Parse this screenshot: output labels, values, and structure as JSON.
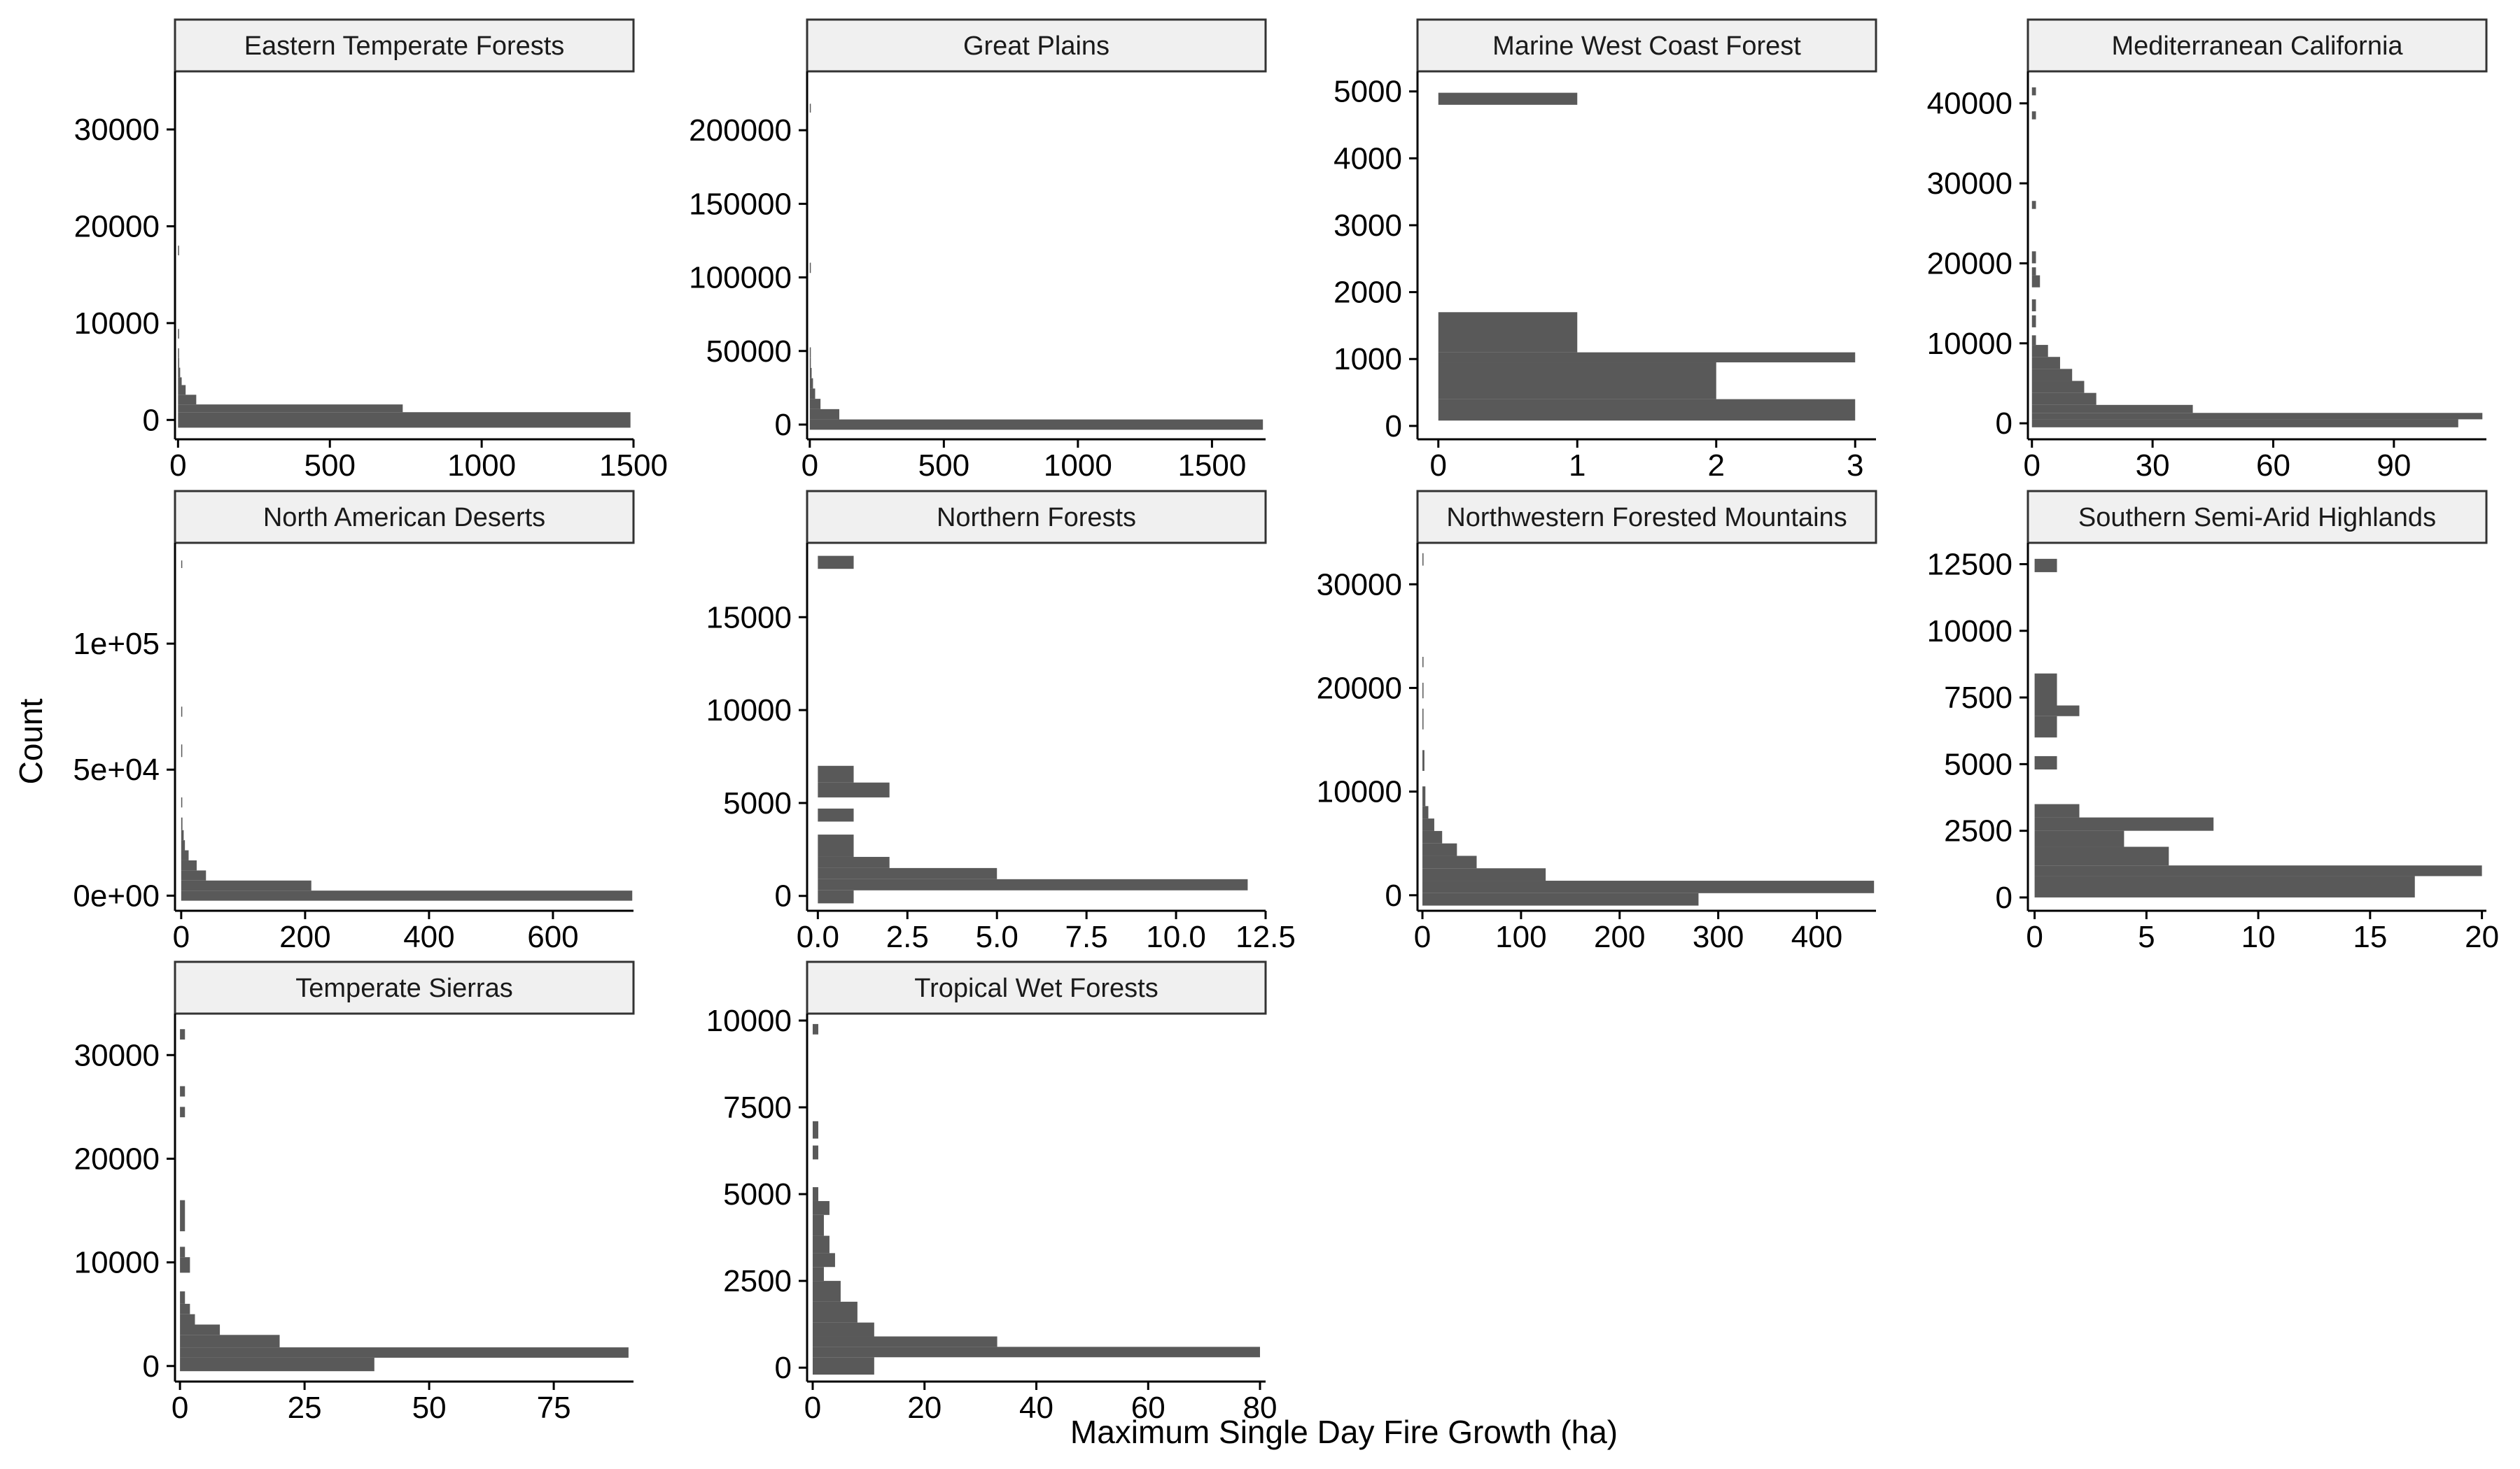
{
  "figure": {
    "xlabel": "Maximum Single Day Fire Growth (ha)",
    "ylabel": "Count"
  },
  "colors": {
    "bar": "#595959",
    "strip_fill": "#f0f0f0",
    "strip_border": "#333333",
    "axis": "#000000"
  },
  "chart_data": [
    {
      "type": "bar",
      "orientation": "horizontal-histogram",
      "title": "Eastern Temperate Forests",
      "xlim": [
        -10,
        1500
      ],
      "ylim": [
        -2000,
        36000
      ],
      "xticks": [
        0,
        500,
        1000,
        1500
      ],
      "xtick_labels": [
        "0",
        "500",
        "1000",
        "1500"
      ],
      "yticks": [
        0,
        10000,
        20000,
        30000
      ],
      "ytick_labels": [
        "0",
        "10000",
        "20000",
        "30000"
      ],
      "bars": [
        [
          -800,
          800,
          1490
        ],
        [
          800,
          1600,
          740
        ],
        [
          1600,
          2600,
          60
        ],
        [
          2600,
          3600,
          25
        ],
        [
          3600,
          4400,
          12
        ],
        [
          4400,
          5400,
          7
        ],
        [
          5400,
          6400,
          4
        ],
        [
          6400,
          7400,
          2
        ],
        [
          8400,
          9400,
          1
        ],
        [
          17000,
          18000,
          1
        ]
      ]
    },
    {
      "type": "bar",
      "orientation": "horizontal-histogram",
      "title": "Great Plains",
      "xlim": [
        -10,
        1700
      ],
      "ylim": [
        -10000,
        240000
      ],
      "xticks": [
        0,
        500,
        1000,
        1500
      ],
      "xtick_labels": [
        "0",
        "500",
        "1000",
        "1500"
      ],
      "yticks": [
        0,
        50000,
        100000,
        150000,
        200000
      ],
      "ytick_labels": [
        "0",
        "50000",
        "100000",
        "150000",
        "200000"
      ],
      "bars": [
        [
          -3500,
          3500,
          1690
        ],
        [
          3500,
          10500,
          110
        ],
        [
          10500,
          17500,
          40
        ],
        [
          17500,
          24500,
          20
        ],
        [
          24500,
          31500,
          12
        ],
        [
          31500,
          38500,
          7
        ],
        [
          38500,
          45500,
          4
        ],
        [
          45500,
          52500,
          2
        ],
        [
          103000,
          110000,
          1
        ],
        [
          212000,
          218000,
          1
        ]
      ]
    },
    {
      "type": "bar",
      "orientation": "horizontal-histogram",
      "title": "Marine West Coast Forest",
      "xlim": [
        -0.15,
        3.15
      ],
      "ylim": [
        -200,
        5300
      ],
      "xticks": [
        0,
        1,
        2,
        3
      ],
      "xtick_labels": [
        "0",
        "1",
        "2",
        "3"
      ],
      "yticks": [
        0,
        1000,
        2000,
        3000,
        4000,
        5000
      ],
      "ytick_labels": [
        "0",
        "1000",
        "2000",
        "3000",
        "4000",
        "5000"
      ],
      "bars": [
        [
          80,
          400,
          3
        ],
        [
          400,
          950,
          2
        ],
        [
          950,
          1100,
          3
        ],
        [
          1100,
          1700,
          1
        ],
        [
          4800,
          4980,
          1
        ]
      ]
    },
    {
      "type": "bar",
      "orientation": "horizontal-histogram",
      "title": "Mediterranean California",
      "xlim": [
        -1,
        113
      ],
      "ylim": [
        -2000,
        44000
      ],
      "xticks": [
        0,
        30,
        60,
        90
      ],
      "xtick_labels": [
        "0",
        "30",
        "60",
        "90"
      ],
      "yticks": [
        0,
        10000,
        20000,
        30000,
        40000
      ],
      "ytick_labels": [
        "0",
        "10000",
        "20000",
        "30000",
        "40000"
      ],
      "bars": [
        [
          -500,
          500,
          106
        ],
        [
          500,
          1300,
          112
        ],
        [
          1300,
          2300,
          40
        ],
        [
          2300,
          3800,
          16
        ],
        [
          3800,
          5300,
          13
        ],
        [
          5300,
          6800,
          10
        ],
        [
          6800,
          8300,
          7
        ],
        [
          8300,
          9800,
          4
        ],
        [
          9800,
          11000,
          1
        ],
        [
          12000,
          13500,
          1
        ],
        [
          14000,
          15500,
          1
        ],
        [
          17000,
          18500,
          2
        ],
        [
          18500,
          19500,
          1
        ],
        [
          20000,
          21500,
          1
        ],
        [
          26800,
          27800,
          1
        ],
        [
          38000,
          39000,
          1
        ],
        [
          41000,
          42000,
          1
        ]
      ]
    },
    {
      "type": "bar",
      "orientation": "horizontal-histogram",
      "title": "North American Deserts",
      "xlim": [
        -10,
        730
      ],
      "ylim": [
        -6000,
        140000
      ],
      "xticks": [
        0,
        200,
        400,
        600
      ],
      "xtick_labels": [
        "0",
        "200",
        "400",
        "600"
      ],
      "yticks": [
        0,
        50000,
        100000
      ],
      "ytick_labels": [
        "0e+00",
        "5e+04",
        "1e+05"
      ],
      "bars": [
        [
          -2000,
          2000,
          728
        ],
        [
          2000,
          6000,
          210
        ],
        [
          6000,
          10000,
          40
        ],
        [
          10000,
          14000,
          25
        ],
        [
          14000,
          18000,
          12
        ],
        [
          18000,
          22000,
          6
        ],
        [
          22000,
          26000,
          4
        ],
        [
          26000,
          31000,
          2
        ],
        [
          35000,
          39000,
          1
        ],
        [
          55000,
          60000,
          1
        ],
        [
          71000,
          75000,
          1
        ],
        [
          130000,
          133000,
          1
        ]
      ]
    },
    {
      "type": "bar",
      "orientation": "horizontal-histogram",
      "title": "Northern Forests",
      "xlim": [
        -0.3,
        12.5
      ],
      "ylim": [
        -800,
        19000
      ],
      "xticks": [
        0,
        2.5,
        5,
        7.5,
        10,
        12.5
      ],
      "xtick_labels": [
        "0.0",
        "2.5",
        "5.0",
        "7.5",
        "10.0",
        "12.5"
      ],
      "yticks": [
        0,
        5000,
        10000,
        15000
      ],
      "ytick_labels": [
        "0",
        "5000",
        "10000",
        "15000"
      ],
      "bars": [
        [
          -400,
          300,
          1
        ],
        [
          300,
          900,
          12
        ],
        [
          900,
          1500,
          5
        ],
        [
          1500,
          2100,
          2
        ],
        [
          2100,
          3300,
          1
        ],
        [
          4000,
          4700,
          1
        ],
        [
          5300,
          6100,
          2
        ],
        [
          6100,
          7000,
          1
        ],
        [
          17600,
          18300,
          1
        ]
      ]
    },
    {
      "type": "bar",
      "orientation": "horizontal-histogram",
      "title": "Northwestern Forested Mountains",
      "xlim": [
        -5,
        460
      ],
      "ylim": [
        -1500,
        34000
      ],
      "xticks": [
        0,
        100,
        200,
        300,
        400
      ],
      "xtick_labels": [
        "0",
        "100",
        "200",
        "300",
        "400"
      ],
      "yticks": [
        0,
        10000,
        20000,
        30000
      ],
      "ytick_labels": [
        "0",
        "10000",
        "20000",
        "30000"
      ],
      "bars": [
        [
          -1000,
          200,
          280
        ],
        [
          200,
          1400,
          458
        ],
        [
          1400,
          2600,
          125
        ],
        [
          2600,
          3800,
          55
        ],
        [
          3800,
          5000,
          35
        ],
        [
          5000,
          6200,
          20
        ],
        [
          6200,
          7400,
          12
        ],
        [
          7400,
          8600,
          6
        ],
        [
          8600,
          10500,
          3
        ],
        [
          12000,
          14000,
          2
        ],
        [
          16000,
          18000,
          1
        ],
        [
          19000,
          20500,
          1
        ],
        [
          22000,
          23000,
          1
        ],
        [
          31800,
          33000,
          1
        ]
      ]
    },
    {
      "type": "bar",
      "orientation": "horizontal-histogram",
      "title": "Southern Semi-Arid Highlands",
      "xlim": [
        -0.3,
        20.2
      ],
      "ylim": [
        -500,
        13300
      ],
      "xticks": [
        0,
        5,
        10,
        15,
        20
      ],
      "xtick_labels": [
        "0",
        "5",
        "10",
        "15",
        "20"
      ],
      "yticks": [
        0,
        2500,
        5000,
        7500,
        10000,
        12500
      ],
      "ytick_labels": [
        "0",
        "2500",
        "5000",
        "7500",
        "10000",
        "12500"
      ],
      "bars": [
        [
          0,
          800,
          17
        ],
        [
          800,
          1200,
          20
        ],
        [
          1200,
          1900,
          6
        ],
        [
          1900,
          2500,
          4
        ],
        [
          2500,
          3000,
          8
        ],
        [
          3000,
          3500,
          2
        ],
        [
          4800,
          5300,
          1
        ],
        [
          6000,
          6800,
          1
        ],
        [
          6800,
          7200,
          2
        ],
        [
          7200,
          8400,
          1
        ],
        [
          12200,
          12700,
          1
        ]
      ]
    },
    {
      "type": "bar",
      "orientation": "horizontal-histogram",
      "title": "Temperate Sierras",
      "xlim": [
        -1,
        91
      ],
      "ylim": [
        -1500,
        34000
      ],
      "xticks": [
        0,
        25,
        50,
        75
      ],
      "xtick_labels": [
        "0",
        "25",
        "50",
        "75"
      ],
      "yticks": [
        0,
        10000,
        20000,
        30000
      ],
      "ytick_labels": [
        "0",
        "10000",
        "20000",
        "30000"
      ],
      "bars": [
        [
          -500,
          800,
          39
        ],
        [
          800,
          1800,
          90
        ],
        [
          1800,
          3000,
          20
        ],
        [
          3000,
          4000,
          8
        ],
        [
          4000,
          5000,
          3
        ],
        [
          5000,
          6000,
          2
        ],
        [
          6000,
          7200,
          1
        ],
        [
          9000,
          10500,
          2
        ],
        [
          10500,
          11500,
          1
        ],
        [
          13000,
          16000,
          1
        ],
        [
          24000,
          25000,
          1
        ],
        [
          26000,
          27000,
          1
        ],
        [
          31500,
          32500,
          1
        ]
      ]
    },
    {
      "type": "bar",
      "orientation": "horizontal-histogram",
      "title": "Tropical Wet Forests",
      "xlim": [
        -1,
        81
      ],
      "ylim": [
        -400,
        10200
      ],
      "xticks": [
        0,
        20,
        40,
        60,
        80
      ],
      "xtick_labels": [
        "0",
        "20",
        "40",
        "60",
        "80"
      ],
      "yticks": [
        0,
        2500,
        5000,
        7500,
        10000
      ],
      "ytick_labels": [
        "0",
        "2500",
        "5000",
        "7500",
        "10000"
      ],
      "bars": [
        [
          -200,
          300,
          11
        ],
        [
          300,
          600,
          80
        ],
        [
          600,
          900,
          33
        ],
        [
          900,
          1300,
          11
        ],
        [
          1300,
          1900,
          8
        ],
        [
          1900,
          2500,
          5
        ],
        [
          2500,
          2900,
          2
        ],
        [
          2900,
          3300,
          4
        ],
        [
          3300,
          3800,
          3
        ],
        [
          3800,
          4400,
          2
        ],
        [
          4400,
          4800,
          3
        ],
        [
          4800,
          5200,
          1
        ],
        [
          6000,
          6400,
          1
        ],
        [
          6600,
          7100,
          1
        ],
        [
          9600,
          9900,
          1
        ]
      ]
    }
  ]
}
